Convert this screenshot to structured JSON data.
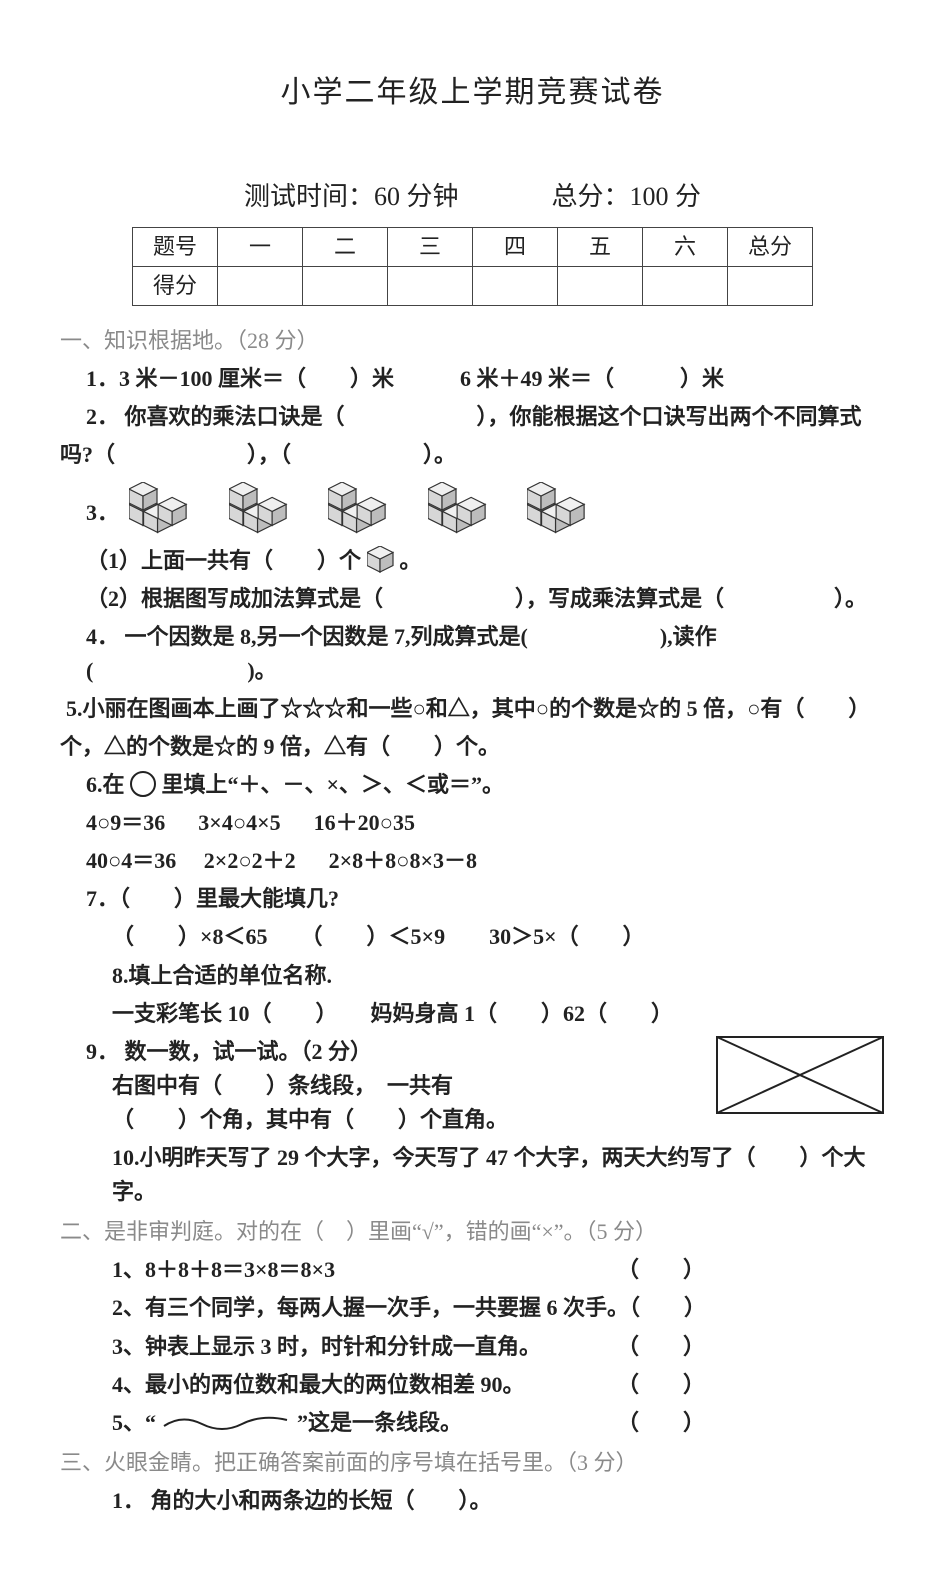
{
  "title": "小学二年级上学期竞赛试卷",
  "timing": {
    "time_label": "测试时间：60 分钟",
    "total_label": "总分：100 分"
  },
  "score_table": {
    "row1": [
      "题号",
      "一",
      "二",
      "三",
      "四",
      "五",
      "六",
      "总分"
    ],
    "row2_head": "得分"
  },
  "section1": {
    "head": "一、知识根据地。（28 分）",
    "q1": "1．3 米－100 厘米＝（　　）米　　　6 米＋49 米＝（　　　）米",
    "q2": "2． 你喜欢的乘法口诀是（　　　　　　），你能根据这个口诀写出两个不同算式",
    "q2b": "吗?（　　　　　　），（　　　　　　）。",
    "q3_label": "3．",
    "q3_1": "（1）上面一共有（　　）个",
    "q3_1_tail": "。",
    "q3_2": "（2）根据图写成加法算式是（　　　　　　），写成乘法算式是（　　　　　）。",
    "q4": "4． 一个因数是 8,另一个因数是 7,列成算式是(　　　　　　),读作(　　　　　　　)。",
    "q5a": "5.小丽在图画本上画了☆☆☆和一些○和△，其中○的个数是☆的 5 倍，○有（　　）",
    "q5b": "个，△的个数是☆的 9 倍，△有（　　）个。",
    "q6_head": "6.在　　里填上“＋、－、×、＞、＜或＝”。",
    "q6_row1a": "4○9＝36",
    "q6_row1b": "3×4○4×5",
    "q6_row1c": "16＋20○35",
    "q6_row2a": "40○4＝36",
    "q6_row2b": "2×2○2＋2",
    "q6_row2c": "2×8＋8○8×3－8",
    "q7_head": "7．（　　）里最大能填几?",
    "q7_items": "（　　）×8＜65　　（　　）＜5×9　　30＞5×（　　）",
    "q8_head": "8.填上合适的单位名称.",
    "q8_items": "一支彩笔长 10（　　）　　妈妈身高 1（　　）62（　　）",
    "q9_head": "9． 数一数，试一试。（2 分）",
    "q9_line1": "右图中有（　　）条线段，　一共有",
    "q9_line2": "（　　）个角，其中有（　　）个直角。",
    "q10": "10.小明昨天写了 29 个大字，今天写了 47 个大字，两天大约写了（　　）个大字。"
  },
  "section2": {
    "head": "二、是非审判庭。对的在（　）里画“√”，错的画“×”。（5 分）",
    "i1": "1、8＋8＋8＝3×8＝8×3",
    "i2": "2、有三个同学，每两人握一次手，一共要握 6 次手。（　　）",
    "i3": "3、钟表上显示 3 时，时针和分针成一直角。",
    "i4": "4、最小的两位数和最大的两位数相差 90。",
    "i5_pre": "5、“",
    "i5_post": "”这是一条线段。",
    "paren": "（　　）"
  },
  "section3": {
    "head": "三、火眼金睛。把正确答案前面的序号填在括号里。（3 分）",
    "q1": "1． 角的大小和两条边的长短（　　）。"
  },
  "rect_svg": {
    "width": 170,
    "height": 80,
    "stroke": "#222",
    "stroke_width": 2
  },
  "cube_colors": {
    "fill": "#d7d7d7",
    "stroke": "#333"
  }
}
